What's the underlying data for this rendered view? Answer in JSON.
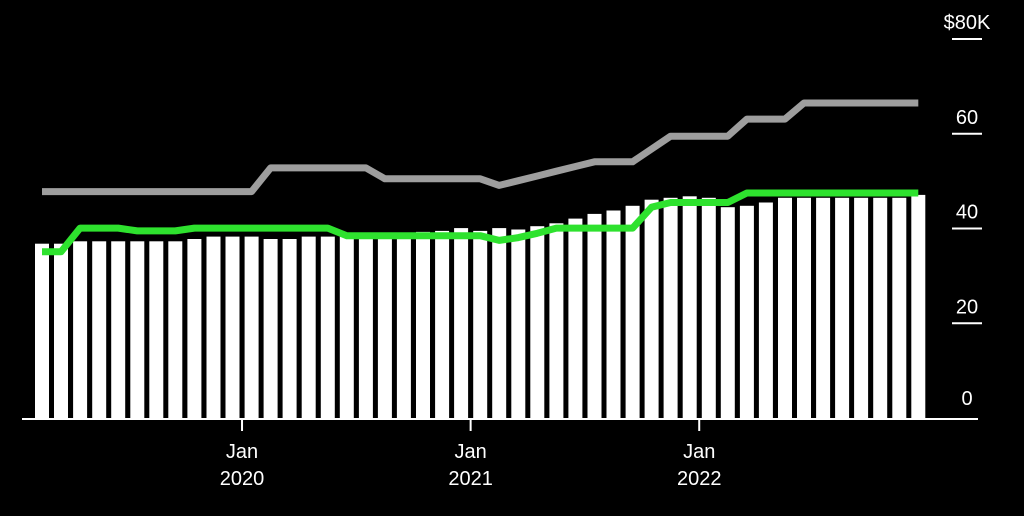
{
  "chart_data": {
    "type": "bar",
    "x_ticks": [
      {
        "x": "2020-01",
        "label_line1": "Jan",
        "label_line2": "2020"
      },
      {
        "x": "2021-01",
        "label_line1": "Jan",
        "label_line2": "2021"
      },
      {
        "x": "2022-01",
        "label_line1": "Jan",
        "label_line2": "2022"
      }
    ],
    "y_ticks": [
      {
        "value": 0,
        "label": "0"
      },
      {
        "value": 20,
        "label": "20"
      },
      {
        "value": 40,
        "label": "40"
      },
      {
        "value": 60,
        "label": "60"
      },
      {
        "value": 80,
        "label": "$80K"
      }
    ],
    "ylim": [
      0,
      80
    ],
    "grid": false,
    "categories": [
      "2019-03",
      "2019-04",
      "2019-05",
      "2019-06",
      "2019-07",
      "2019-08",
      "2019-09",
      "2019-10",
      "2019-11",
      "2019-12",
      "2020-01",
      "2020-02",
      "2020-03",
      "2020-04",
      "2020-05",
      "2020-06",
      "2020-07",
      "2020-08",
      "2020-09",
      "2020-10",
      "2020-11",
      "2020-12",
      "2021-01",
      "2021-02",
      "2021-03",
      "2021-04",
      "2021-05",
      "2021-06",
      "2021-07",
      "2021-08",
      "2021-09",
      "2021-10",
      "2021-11",
      "2021-12",
      "2022-01",
      "2022-02",
      "2022-03",
      "2022-04",
      "2022-05",
      "2022-06",
      "2022-07",
      "2022-08",
      "2022-09",
      "2022-10",
      "2022-11",
      "2022-12",
      "2023-01"
    ],
    "series": [
      {
        "type": "bar",
        "color": "#ffffff",
        "values": [
          37,
          37,
          37.5,
          37.5,
          37.5,
          37.5,
          37.5,
          37.5,
          38,
          38.5,
          38.5,
          38.5,
          38,
          38,
          38.5,
          38.5,
          38.5,
          38.7,
          39,
          39.3,
          39.5,
          39.7,
          40.3,
          39.7,
          40.3,
          40,
          40.7,
          41.3,
          42.3,
          43.3,
          44,
          45,
          46.3,
          46.7,
          47,
          46.7,
          44.7,
          45,
          45.7,
          46.7,
          46.7,
          46.7,
          46.7,
          46.7,
          46.7,
          46.7,
          47.3
        ]
      },
      {
        "type": "line",
        "color": "#9e9e9e",
        "values": [
          48,
          48,
          48,
          48,
          48,
          48,
          48,
          48,
          48,
          48,
          48,
          48,
          53,
          53,
          53,
          53,
          53,
          53,
          50.7,
          50.7,
          50.7,
          50.7,
          50.7,
          50.7,
          49.3,
          50.3,
          51.3,
          52.3,
          53.3,
          54.3,
          54.3,
          54.3,
          57,
          59.7,
          59.7,
          59.7,
          59.7,
          63.3,
          63.3,
          63.3,
          66.7,
          66.7,
          66.7,
          66.7,
          66.7,
          66.7,
          66.7
        ]
      },
      {
        "type": "line",
        "color": "#2ee22e",
        "values": [
          35.3,
          35.3,
          40.3,
          40.3,
          40.3,
          39.7,
          39.7,
          39.7,
          40.3,
          40.3,
          40.3,
          40.3,
          40.3,
          40.3,
          40.3,
          40.3,
          38.7,
          38.7,
          38.7,
          38.7,
          38.7,
          38.7,
          38.7,
          38.7,
          37.7,
          38.3,
          39.2,
          40.3,
          40.3,
          40.3,
          40.3,
          40.3,
          44.7,
          45.7,
          45.7,
          45.7,
          45.7,
          47.7,
          47.7,
          47.7,
          47.7,
          47.7,
          47.7,
          47.7,
          47.7,
          47.7,
          47.7
        ]
      }
    ]
  }
}
